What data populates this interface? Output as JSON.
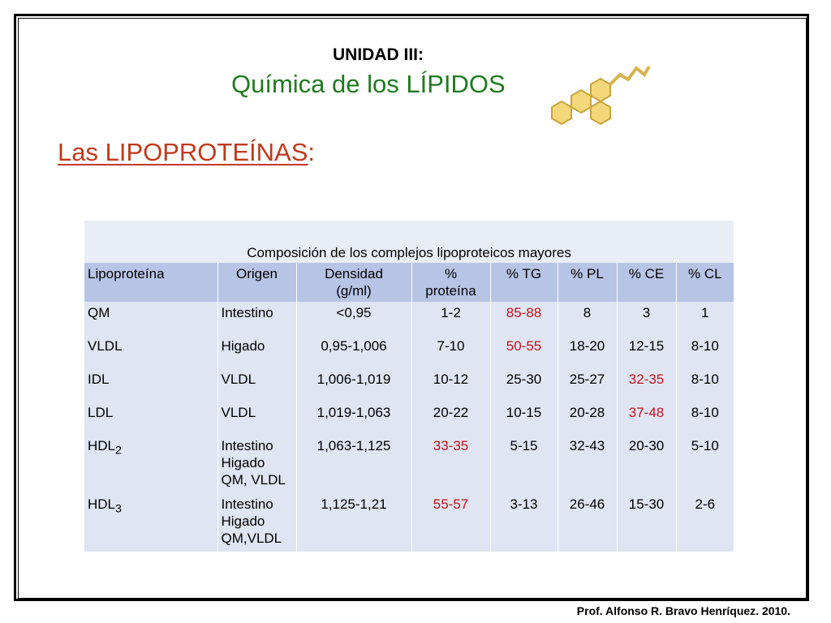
{
  "header": {
    "unit": "UNIDAD III:",
    "title": "Química de los LÍPIDOS"
  },
  "section": {
    "title": "Las LIPOPROTEÍNAS",
    "colon": ":"
  },
  "table": {
    "caption": "Composición de los complejos lipoproteicos mayores",
    "highlight_color": "#c0141c",
    "columns": [
      "Lipoproteína",
      "Origen",
      [
        "Densidad",
        "(g/ml)"
      ],
      [
        "%",
        "proteína"
      ],
      "% TG",
      "% PL",
      "% CE",
      "% CL"
    ],
    "rows": [
      {
        "cells": [
          "QM",
          "Intestino",
          "<0,95",
          "1-2",
          "85-88",
          "8",
          "3",
          "1"
        ],
        "highlight": [
          4
        ]
      },
      {
        "cells": [
          "VLDL",
          "Higado",
          "0,95-1,006",
          "7-10",
          "50-55",
          "18-20",
          "12-15",
          "8-10"
        ],
        "highlight": [
          4
        ]
      },
      {
        "cells": [
          "IDL",
          "VLDL",
          "1,006-1,019",
          "10-12",
          "25-30",
          "25-27",
          "32-35",
          "8-10"
        ],
        "highlight": [
          6
        ]
      },
      {
        "cells": [
          "LDL",
          "VLDL",
          "1,019-1,063",
          "20-22",
          "10-15",
          "20-28",
          "37-48",
          "8-10"
        ],
        "highlight": [
          6
        ]
      },
      {
        "cells": [
          {
            "text": "HDL",
            "sub": "2"
          },
          [
            "Intestino",
            "Higado",
            "QM, VLDL"
          ],
          "1,063-1,125",
          "33-35",
          "5-15",
          "32-43",
          "20-30",
          "5-10"
        ],
        "highlight": [
          3
        ]
      },
      {
        "cells": [
          {
            "text": "HDL",
            "sub": "3"
          },
          [
            "Intestino",
            "Higado",
            "QM,VLDL"
          ],
          "1,125-1,21",
          "55-57",
          "3-13",
          "26-46",
          "15-30",
          "2-6"
        ],
        "highlight": [
          3
        ]
      }
    ]
  },
  "footer": "Prof. Alfonso R. Bravo Henríquez. 2010."
}
